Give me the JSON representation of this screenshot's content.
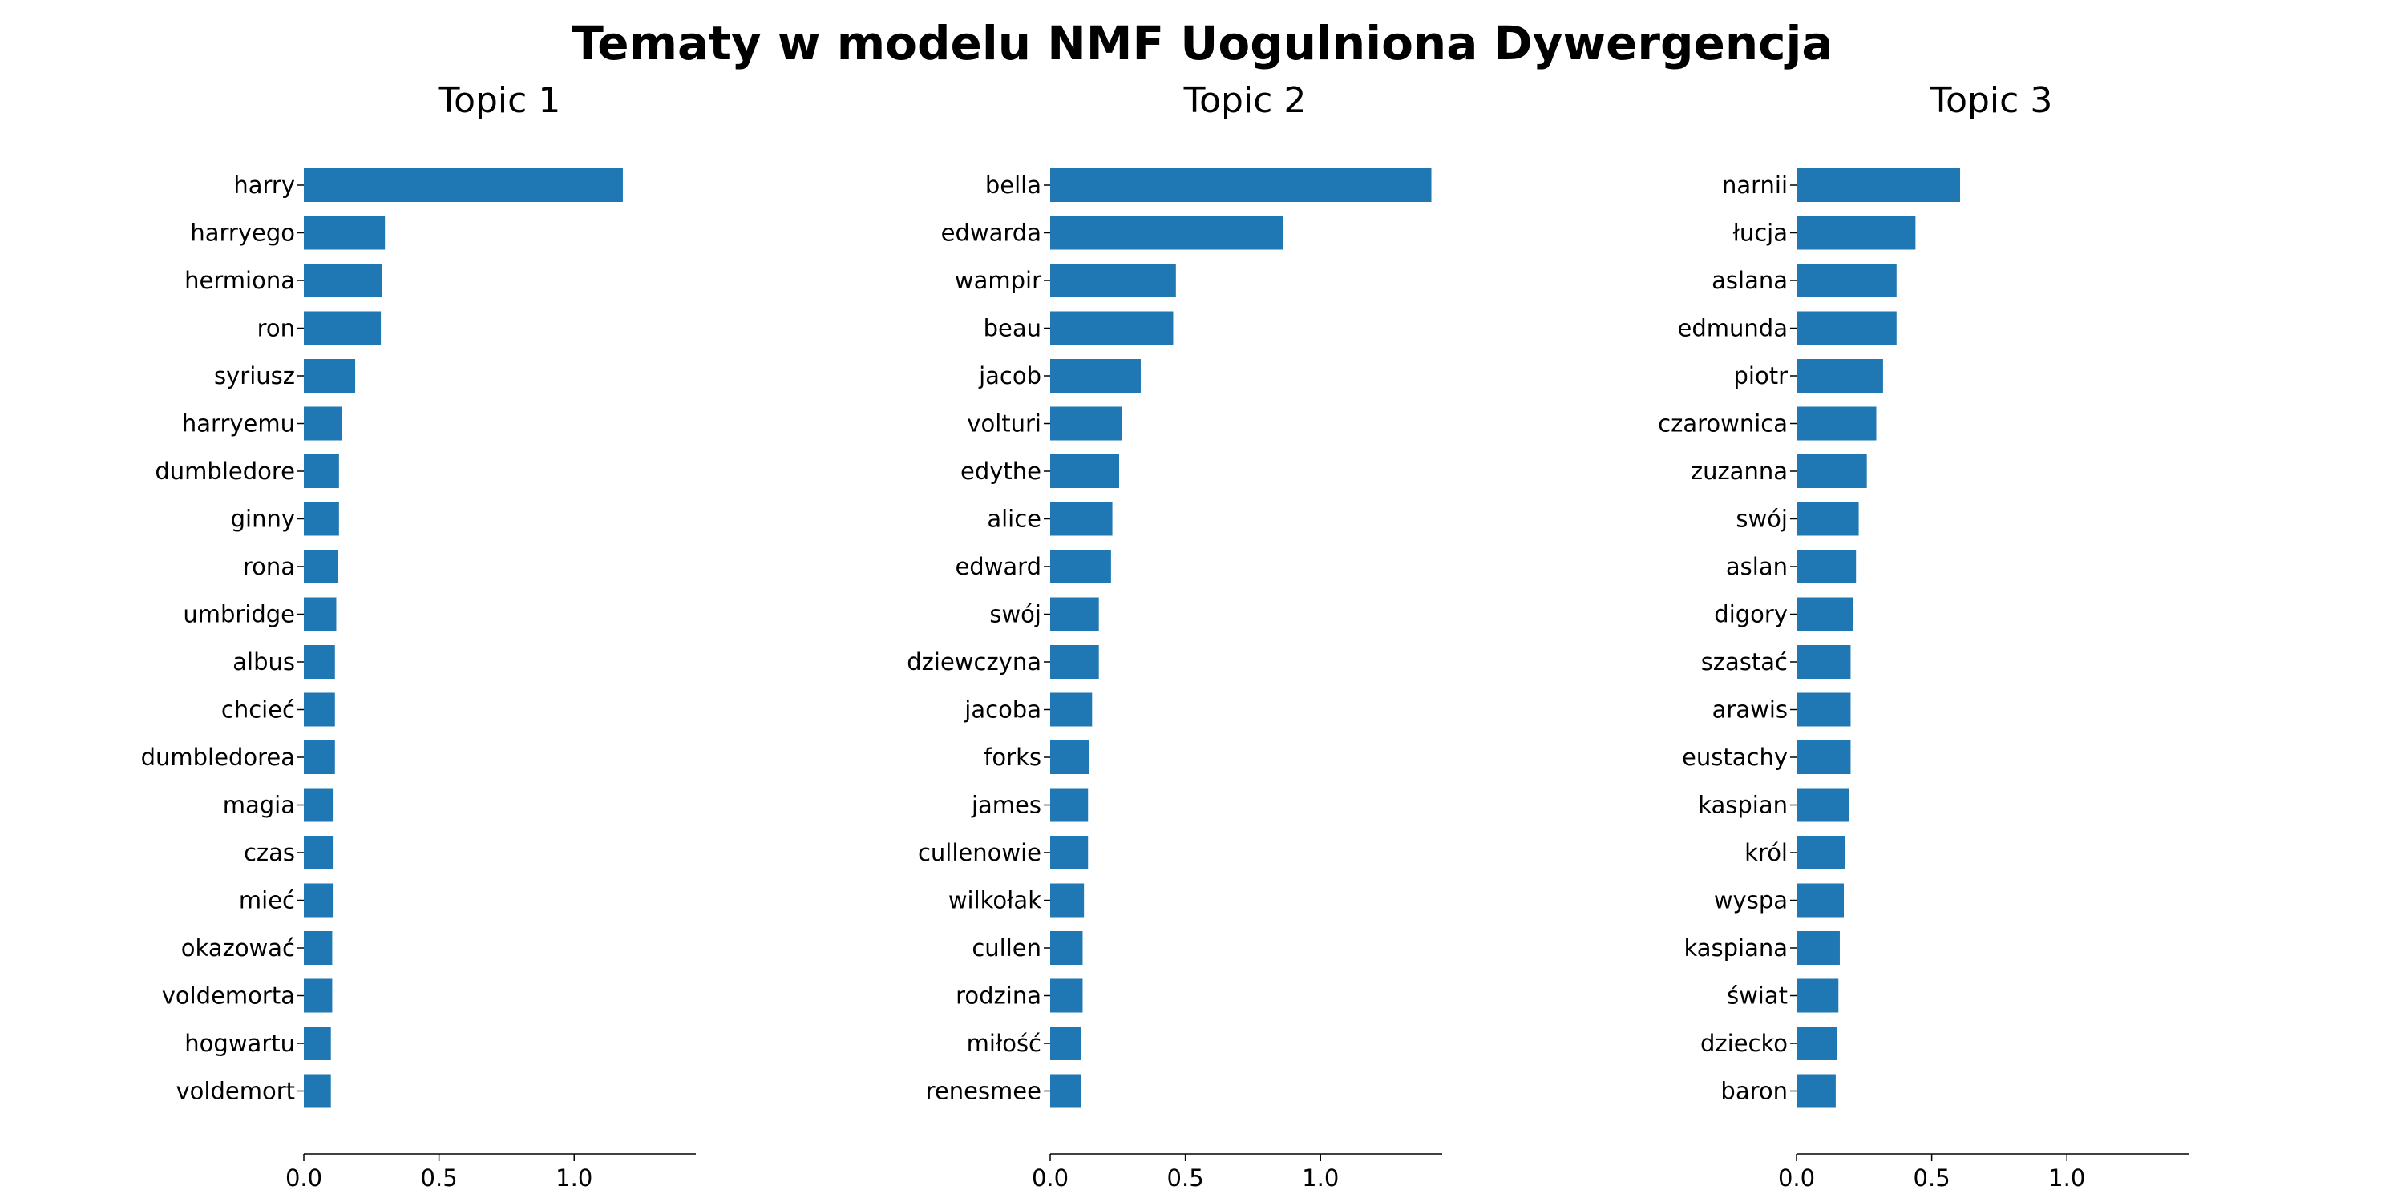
{
  "chart_data": {
    "type": "bar",
    "orientation": "horizontal",
    "title": "Tematy w modelu NMF Uogulniona Dywergencja",
    "bar_color": "#1f77b4",
    "xlim": [
      0,
      1.45
    ],
    "xticks": [
      0.0,
      0.5,
      1.0
    ],
    "xtick_labels": [
      "0.0",
      "0.5",
      "1.0"
    ],
    "grid": false,
    "legend": "none",
    "panels": [
      {
        "title": "Topic 1",
        "categories": [
          "harry",
          "harryego",
          "hermiona",
          "ron",
          "syriusz",
          "harryemu",
          "dumbledore",
          "ginny",
          "rona",
          "umbridge",
          "albus",
          "chcieć",
          "dumbledorea",
          "magia",
          "czas",
          "mieć",
          "okazować",
          "voldemorta",
          "hogwartu",
          "voldemort"
        ],
        "values": [
          1.18,
          0.3,
          0.29,
          0.285,
          0.19,
          0.14,
          0.13,
          0.13,
          0.125,
          0.12,
          0.115,
          0.115,
          0.115,
          0.11,
          0.11,
          0.11,
          0.105,
          0.105,
          0.1,
          0.1
        ]
      },
      {
        "title": "Topic 2",
        "categories": [
          "bella",
          "edwarda",
          "wampir",
          "beau",
          "jacob",
          "volturi",
          "edythe",
          "alice",
          "edward",
          "swój",
          "dziewczyna",
          "jacoba",
          "forks",
          "james",
          "cullenowie",
          "wilkołak",
          "cullen",
          "rodzina",
          "miłość",
          "renesmee"
        ],
        "values": [
          1.41,
          0.86,
          0.465,
          0.455,
          0.335,
          0.265,
          0.255,
          0.23,
          0.225,
          0.18,
          0.18,
          0.155,
          0.145,
          0.14,
          0.14,
          0.125,
          0.12,
          0.12,
          0.115,
          0.115
        ]
      },
      {
        "title": "Topic 3",
        "categories": [
          "narnii",
          "łucja",
          "aslana",
          "edmunda",
          "piotr",
          "czarownica",
          "zuzanna",
          "swój",
          "aslan",
          "digory",
          "szastać",
          "arawis",
          "eustachy",
          "kaspian",
          "król",
          "wyspa",
          "kaspiana",
          "świat",
          "dziecko",
          "baron"
        ],
        "values": [
          0.605,
          0.44,
          0.37,
          0.37,
          0.32,
          0.295,
          0.26,
          0.23,
          0.22,
          0.21,
          0.2,
          0.2,
          0.2,
          0.195,
          0.18,
          0.175,
          0.16,
          0.155,
          0.15,
          0.145
        ]
      }
    ]
  }
}
